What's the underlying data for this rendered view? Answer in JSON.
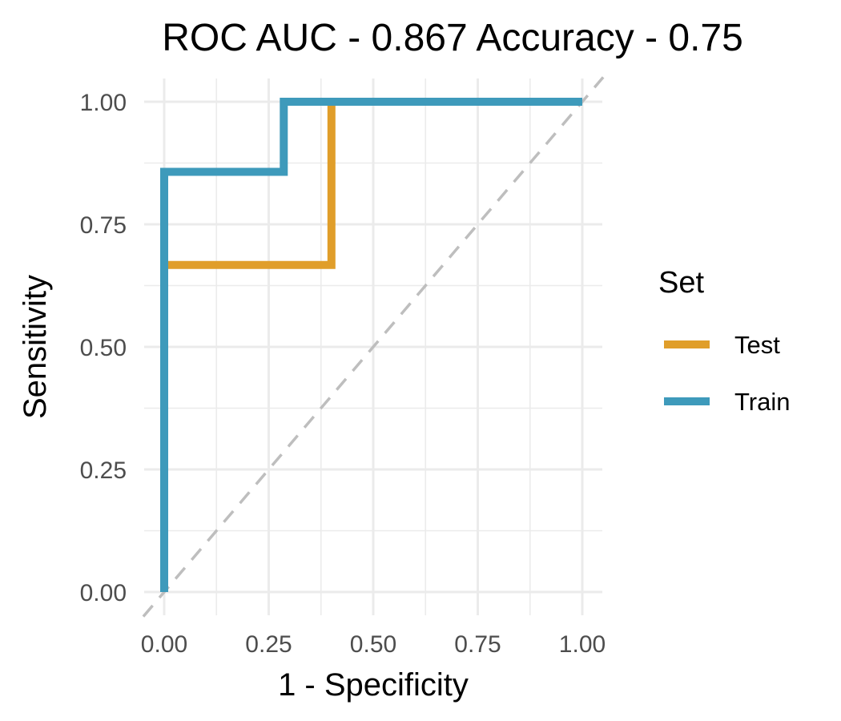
{
  "chart_data": {
    "type": "line",
    "title": "ROC AUC -  0.867 Accuracy - 0.75",
    "xlabel": "1 - Specificity",
    "ylabel": "Sensitivity",
    "xlim": [
      0,
      1
    ],
    "ylim": [
      0,
      1
    ],
    "x_ticks": [
      "0.00",
      "0.25",
      "0.50",
      "0.75",
      "1.00"
    ],
    "y_ticks": [
      "0.00",
      "0.25",
      "0.50",
      "0.75",
      "1.00"
    ],
    "grid": true,
    "legend": {
      "title": "Set",
      "position": "right"
    },
    "reference_line": {
      "from": [
        0,
        0
      ],
      "to": [
        1,
        1
      ],
      "style": "dashed",
      "color": "#bebebe"
    },
    "series": [
      {
        "name": "Test",
        "color": "#E09E2A",
        "x": [
          0,
          0,
          0.4,
          0.4,
          1
        ],
        "y": [
          0,
          0.667,
          0.667,
          1,
          1
        ]
      },
      {
        "name": "Train",
        "color": "#3E9ABB",
        "x": [
          0,
          0,
          0.286,
          0.286,
          1
        ],
        "y": [
          0,
          0.857,
          0.857,
          1,
          1
        ]
      }
    ]
  }
}
